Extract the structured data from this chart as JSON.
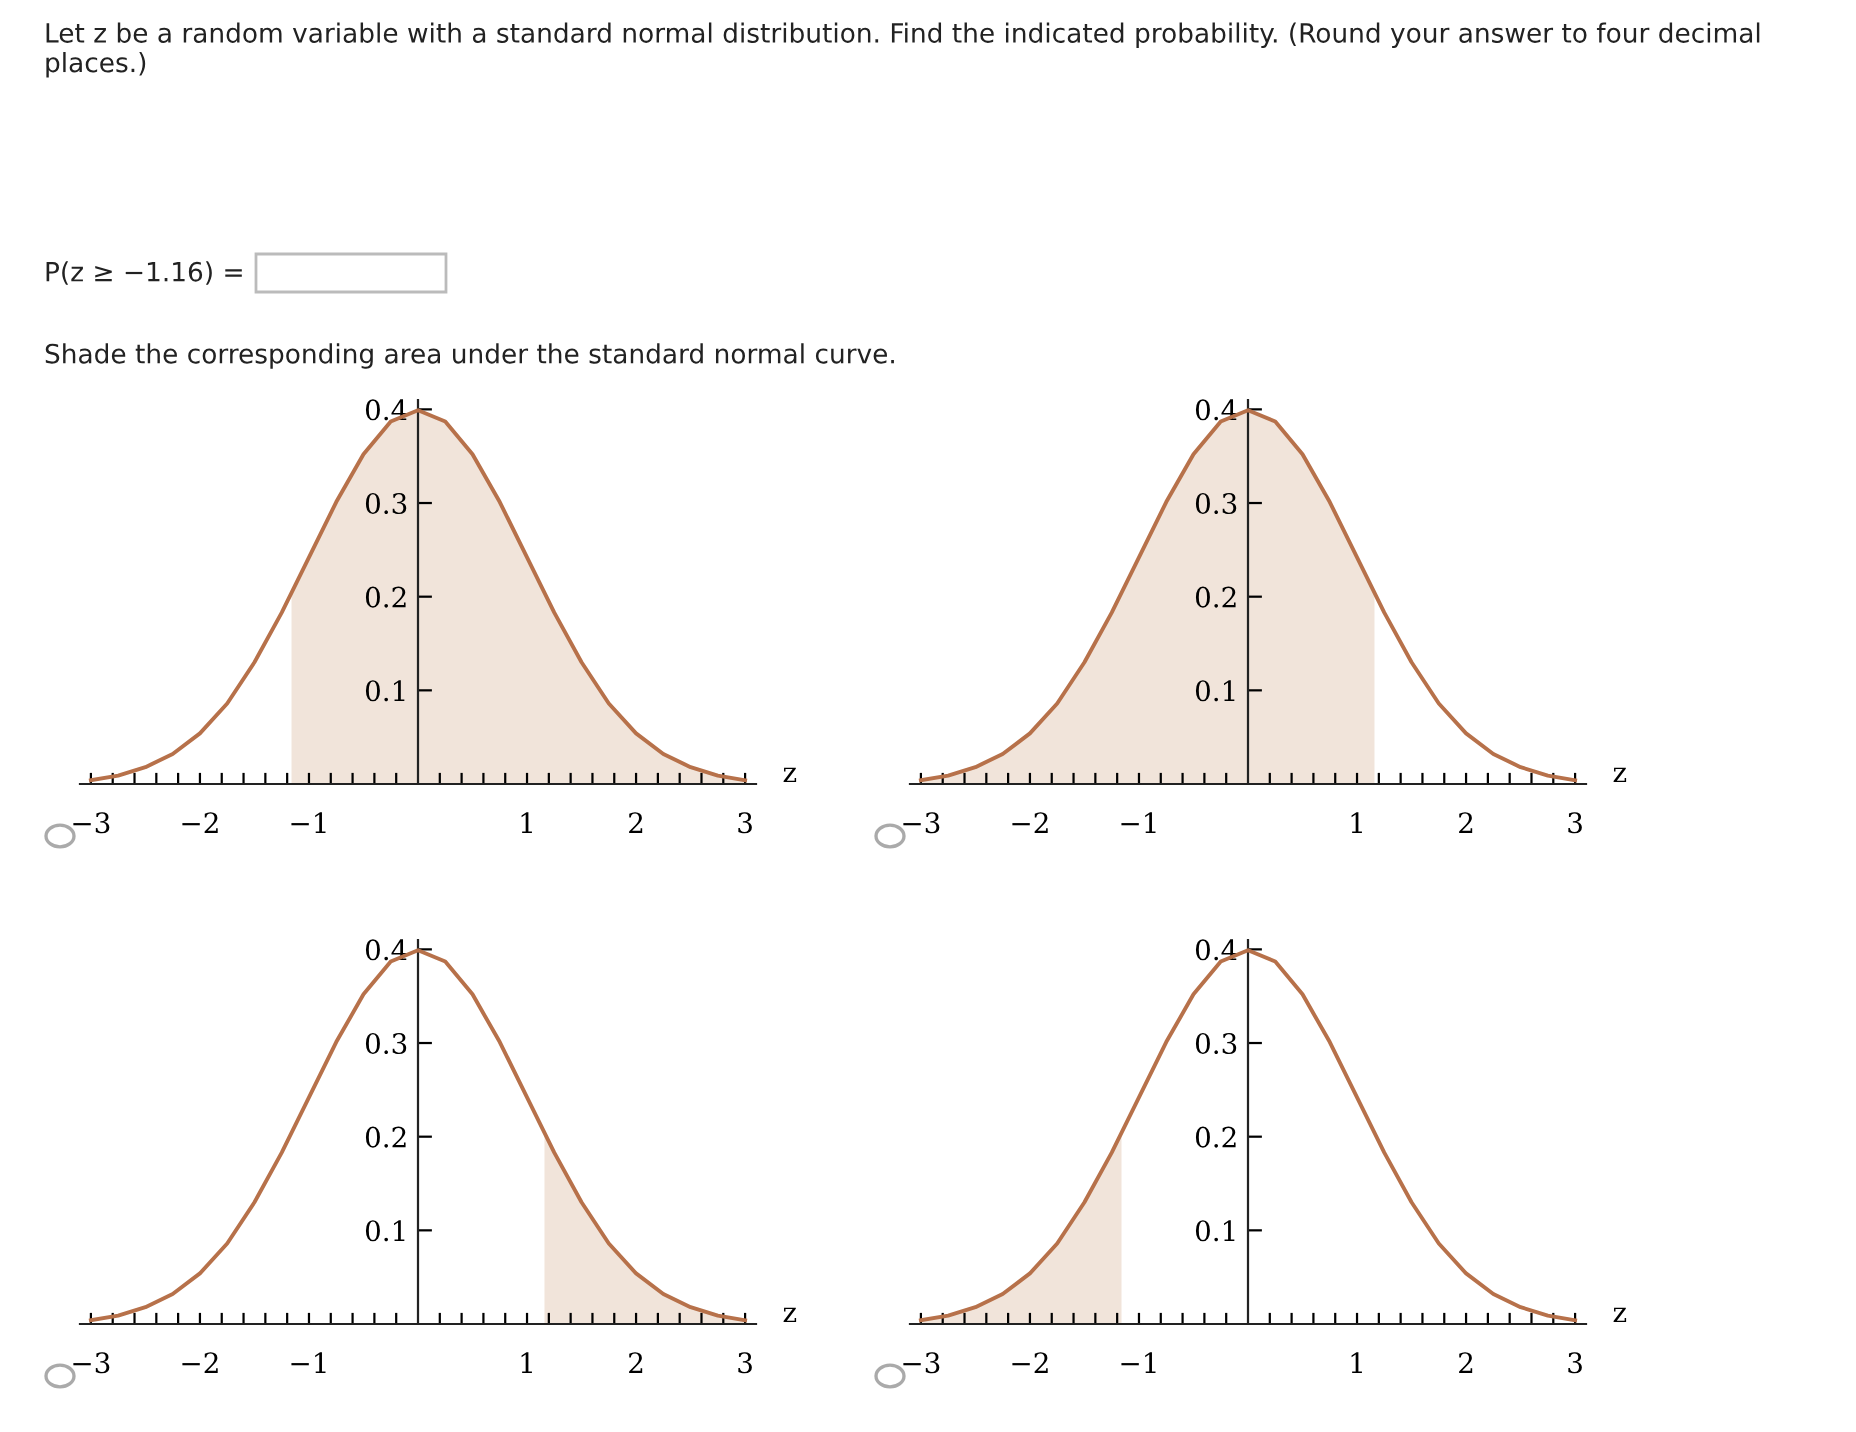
{
  "chart_data": [
    {
      "type": "line",
      "annotations": [
        "Let z be a random variable with a standard normal distribution. Find the indicated probability. (Round your answer to four decimal places.)",
        "P(z ≥ −1.16) =",
        "Shade the corresponding area under the standard normal curve."
      ],
      "xlabel": "z",
      "xlim": [
        -3.1,
        3.1
      ],
      "ylim": [
        0,
        0.41
      ],
      "xticks": [
        {
          "value": -3,
          "label": "−3"
        },
        {
          "value": -2.8,
          "label": null
        },
        {
          "value": -2.6,
          "label": null
        },
        {
          "value": -2.4,
          "label": null
        },
        {
          "value": -2.2,
          "label": null
        },
        {
          "value": -2,
          "label": "−2"
        },
        {
          "value": -1.8,
          "label": null
        },
        {
          "value": -1.6,
          "label": null
        },
        {
          "value": -1.4,
          "label": null
        },
        {
          "value": -1.2,
          "label": null
        },
        {
          "value": -1,
          "label": "−1"
        },
        {
          "value": -0.8,
          "label": null
        },
        {
          "value": -0.6,
          "label": null
        },
        {
          "value": -0.4,
          "label": null
        },
        {
          "value": -0.2,
          "label": null
        },
        {
          "value": 0.2,
          "label": null
        },
        {
          "value": 0.4,
          "label": null
        },
        {
          "value": 0.6,
          "label": null
        },
        {
          "value": 0.8,
          "label": null
        },
        1,
        {
          "value": 1.2,
          "label": null
        },
        {
          "value": 1.4,
          "label": null
        },
        {
          "value": 1.6,
          "label": null
        },
        {
          "value": 1.8,
          "label": null
        },
        2,
        {
          "value": 2.2,
          "label": null
        },
        {
          "value": 2.4,
          "label": null
        },
        {
          "value": 2.6,
          "label": null
        },
        {
          "value": 2.8,
          "label": null
        },
        3
      ],
      "yticks": [
        0.1,
        0.2,
        0.3,
        0.4
      ],
      "series": [
        {
          "type": "area",
          "color": "#f1e4da",
          "x": [
            -1.16,
            -1,
            -0.75,
            -0.5,
            -0.25,
            0,
            0.25,
            0.5,
            0.75,
            1,
            1.25,
            1.5,
            1.75,
            2,
            2.25,
            2.5,
            2.75,
            3
          ],
          "values": [
            0.203,
            0.242,
            0.301,
            0.352,
            0.387,
            0.399,
            0.387,
            0.352,
            0.301,
            0.242,
            0.183,
            0.13,
            0.086,
            0.054,
            0.032,
            0.018,
            0.009,
            0.004
          ]
        },
        {
          "type": "line",
          "color": "#b7714a",
          "x": [
            -3,
            -2.75,
            -2.5,
            -2.25,
            -2,
            -1.75,
            -1.5,
            -1.25,
            -1,
            -0.75,
            -0.5,
            -0.25,
            0,
            0.25,
            0.5,
            0.75,
            1,
            1.25,
            1.5,
            1.75,
            2,
            2.25,
            2.5,
            2.75,
            3
          ],
          "values": [
            0.004,
            0.009,
            0.018,
            0.032,
            0.054,
            0.086,
            0.13,
            0.183,
            0.242,
            0.301,
            0.352,
            0.387,
            0.399,
            0.387,
            0.352,
            0.301,
            0.242,
            0.183,
            0.13,
            0.086,
            0.054,
            0.032,
            0.018,
            0.009,
            0.004
          ]
        }
      ]
    },
    {
      "type": "line",
      "xlabel": "z",
      "xlim": [
        -3.1,
        3.1
      ],
      "ylim": [
        0,
        0.41
      ],
      "xticks": [
        {
          "value": -3,
          "label": "−3"
        },
        {
          "value": -2.8,
          "label": null
        },
        {
          "value": -2.6,
          "label": null
        },
        {
          "value": -2.4,
          "label": null
        },
        {
          "value": -2.2,
          "label": null
        },
        {
          "value": -2,
          "label": "−2"
        },
        {
          "value": -1.8,
          "label": null
        },
        {
          "value": -1.6,
          "label": null
        },
        {
          "value": -1.4,
          "label": null
        },
        {
          "value": -1.2,
          "label": null
        },
        {
          "value": -1,
          "label": "−1"
        },
        {
          "value": -0.8,
          "label": null
        },
        {
          "value": -0.6,
          "label": null
        },
        {
          "value": -0.4,
          "label": null
        },
        {
          "value": -0.2,
          "label": null
        },
        {
          "value": 0.2,
          "label": null
        },
        {
          "value": 0.4,
          "label": null
        },
        {
          "value": 0.6,
          "label": null
        },
        {
          "value": 0.8,
          "label": null
        },
        1,
        {
          "value": 1.2,
          "label": null
        },
        {
          "value": 1.4,
          "label": null
        },
        {
          "value": 1.6,
          "label": null
        },
        {
          "value": 1.8,
          "label": null
        },
        2,
        {
          "value": 2.2,
          "label": null
        },
        {
          "value": 2.4,
          "label": null
        },
        {
          "value": 2.6,
          "label": null
        },
        {
          "value": 2.8,
          "label": null
        },
        3
      ],
      "yticks": [
        0.1,
        0.2,
        0.3,
        0.4
      ],
      "series": [
        {
          "type": "area",
          "color": "#f1e4da",
          "x": [
            -3,
            -2.75,
            -2.5,
            -2.25,
            -2,
            -1.75,
            -1.5,
            -1.25,
            -1,
            -0.75,
            -0.5,
            -0.25,
            0,
            0.25,
            0.5,
            0.75,
            1,
            1.16
          ],
          "values": [
            0.004,
            0.009,
            0.018,
            0.032,
            0.054,
            0.086,
            0.13,
            0.183,
            0.242,
            0.301,
            0.352,
            0.387,
            0.399,
            0.387,
            0.352,
            0.301,
            0.242,
            0.203
          ]
        },
        {
          "type": "line",
          "color": "#b7714a",
          "x": [
            -3,
            -2.75,
            -2.5,
            -2.25,
            -2,
            -1.75,
            -1.5,
            -1.25,
            -1,
            -0.75,
            -0.5,
            -0.25,
            0,
            0.25,
            0.5,
            0.75,
            1,
            1.25,
            1.5,
            1.75,
            2,
            2.25,
            2.5,
            2.75,
            3
          ],
          "values": [
            0.004,
            0.009,
            0.018,
            0.032,
            0.054,
            0.086,
            0.13,
            0.183,
            0.242,
            0.301,
            0.352,
            0.387,
            0.399,
            0.387,
            0.352,
            0.301,
            0.242,
            0.183,
            0.13,
            0.086,
            0.054,
            0.032,
            0.018,
            0.009,
            0.004
          ]
        }
      ]
    },
    {
      "type": "line",
      "xlabel": "z",
      "xlim": [
        -3.1,
        3.1
      ],
      "ylim": [
        0,
        0.41
      ],
      "xticks": [
        {
          "value": -3,
          "label": "−3"
        },
        {
          "value": -2.8,
          "label": null
        },
        {
          "value": -2.6,
          "label": null
        },
        {
          "value": -2.4,
          "label": null
        },
        {
          "value": -2.2,
          "label": null
        },
        {
          "value": -2,
          "label": "−2"
        },
        {
          "value": -1.8,
          "label": null
        },
        {
          "value": -1.6,
          "label": null
        },
        {
          "value": -1.4,
          "label": null
        },
        {
          "value": -1.2,
          "label": null
        },
        {
          "value": -1,
          "label": "−1"
        },
        {
          "value": -0.8,
          "label": null
        },
        {
          "value": -0.6,
          "label": null
        },
        {
          "value": -0.4,
          "label": null
        },
        {
          "value": -0.2,
          "label": null
        },
        {
          "value": 0.2,
          "label": null
        },
        {
          "value": 0.4,
          "label": null
        },
        {
          "value": 0.6,
          "label": null
        },
        {
          "value": 0.8,
          "label": null
        },
        1,
        {
          "value": 1.2,
          "label": null
        },
        {
          "value": 1.4,
          "label": null
        },
        {
          "value": 1.6,
          "label": null
        },
        {
          "value": 1.8,
          "label": null
        },
        2,
        {
          "value": 2.2,
          "label": null
        },
        {
          "value": 2.4,
          "label": null
        },
        {
          "value": 2.6,
          "label": null
        },
        {
          "value": 2.8,
          "label": null
        },
        3
      ],
      "yticks": [
        0.1,
        0.2,
        0.3,
        0.4
      ],
      "series": [
        {
          "type": "area",
          "color": "#f1e4da",
          "x": [
            1.16,
            1.25,
            1.5,
            1.75,
            2,
            2.25,
            2.5,
            2.75,
            3
          ],
          "values": [
            0.203,
            0.183,
            0.13,
            0.086,
            0.054,
            0.032,
            0.018,
            0.009,
            0.004
          ]
        },
        {
          "type": "line",
          "color": "#b7714a",
          "x": [
            -3,
            -2.75,
            -2.5,
            -2.25,
            -2,
            -1.75,
            -1.5,
            -1.25,
            -1,
            -0.75,
            -0.5,
            -0.25,
            0,
            0.25,
            0.5,
            0.75,
            1,
            1.25,
            1.5,
            1.75,
            2,
            2.25,
            2.5,
            2.75,
            3
          ],
          "values": [
            0.004,
            0.009,
            0.018,
            0.032,
            0.054,
            0.086,
            0.13,
            0.183,
            0.242,
            0.301,
            0.352,
            0.387,
            0.399,
            0.387,
            0.352,
            0.301,
            0.242,
            0.183,
            0.13,
            0.086,
            0.054,
            0.032,
            0.018,
            0.009,
            0.004
          ]
        }
      ]
    },
    {
      "type": "line",
      "xlabel": "z",
      "xlim": [
        -3.1,
        3.1
      ],
      "ylim": [
        0,
        0.41
      ],
      "xticks": [
        {
          "value": -3,
          "label": "−3"
        },
        {
          "value": -2.8,
          "label": null
        },
        {
          "value": -2.6,
          "label": null
        },
        {
          "value": -2.4,
          "label": null
        },
        {
          "value": -2.2,
          "label": null
        },
        {
          "value": -2,
          "label": "−2"
        },
        {
          "value": -1.8,
          "label": null
        },
        {
          "value": -1.6,
          "label": null
        },
        {
          "value": -1.4,
          "label": null
        },
        {
          "value": -1.2,
          "label": null
        },
        {
          "value": -1,
          "label": "−1"
        },
        {
          "value": -0.8,
          "label": null
        },
        {
          "value": -0.6,
          "label": null
        },
        {
          "value": -0.4,
          "label": null
        },
        {
          "value": -0.2,
          "label": null
        },
        {
          "value": 0.2,
          "label": null
        },
        {
          "value": 0.4,
          "label": null
        },
        {
          "value": 0.6,
          "label": null
        },
        {
          "value": 0.8,
          "label": null
        },
        1,
        {
          "value": 1.2,
          "label": null
        },
        {
          "value": 1.4,
          "label": null
        },
        {
          "value": 1.6,
          "label": null
        },
        {
          "value": 1.8,
          "label": null
        },
        2,
        {
          "value": 2.2,
          "label": null
        },
        {
          "value": 2.4,
          "label": null
        },
        {
          "value": 2.6,
          "label": null
        },
        {
          "value": 2.8,
          "label": null
        },
        3
      ],
      "yticks": [
        0.1,
        0.2,
        0.3,
        0.4
      ],
      "series": [
        {
          "type": "area",
          "color": "#f1e4da",
          "x": [
            -3,
            -2.75,
            -2.5,
            -2.25,
            -2,
            -1.75,
            -1.5,
            -1.25,
            -1.16
          ],
          "values": [
            0.004,
            0.009,
            0.018,
            0.032,
            0.054,
            0.086,
            0.13,
            0.183,
            0.203
          ]
        },
        {
          "type": "line",
          "color": "#b7714a",
          "x": [
            -3,
            -2.75,
            -2.5,
            -2.25,
            -2,
            -1.75,
            -1.5,
            -1.25,
            -1,
            -0.75,
            -0.5,
            -0.25,
            0,
            0.25,
            0.5,
            0.75,
            1,
            1.25,
            1.5,
            1.75,
            2,
            2.25,
            2.5,
            2.75,
            3
          ],
          "values": [
            0.004,
            0.009,
            0.018,
            0.032,
            0.054,
            0.086,
            0.13,
            0.183,
            0.242,
            0.301,
            0.352,
            0.387,
            0.399,
            0.387,
            0.352,
            0.301,
            0.242,
            0.183,
            0.13,
            0.086,
            0.054,
            0.032,
            0.018,
            0.009,
            0.004
          ]
        }
      ]
    }
  ]
}
